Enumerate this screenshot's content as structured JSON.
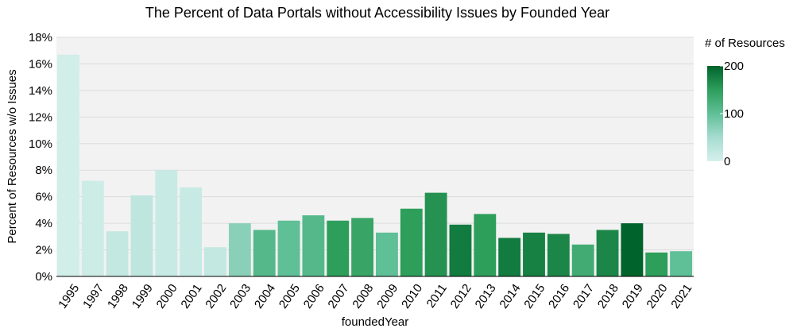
{
  "chart_data": {
    "type": "bar",
    "title": "The Percent of Data Portals without Accessibility Issues by Founded Year",
    "xlabel": "foundedYear",
    "ylabel": "Percent of Resources w/o Issues",
    "ylim": [
      0,
      18
    ],
    "yticks": [
      0,
      2,
      4,
      6,
      8,
      10,
      12,
      14,
      16,
      18
    ],
    "ytick_suffix": "%",
    "grid": true,
    "legend": {
      "title": "# of Resources",
      "placement": "right",
      "ticks": [
        "200",
        "100",
        "0"
      ],
      "range": [
        0,
        200
      ],
      "colors": [
        "#d6f0ec",
        "#a6dcd0",
        "#5fbf97",
        "#2e9e5b",
        "#00632c"
      ]
    },
    "categories": [
      "1995",
      "1997",
      "1998",
      "1999",
      "2000",
      "2001",
      "2002",
      "2003",
      "2004",
      "2005",
      "2006",
      "2007",
      "2008",
      "2009",
      "2010",
      "2011",
      "2012",
      "2013",
      "2014",
      "2015",
      "2016",
      "2017",
      "2018",
      "2019",
      "2020",
      "2021"
    ],
    "values": [
      16.7,
      7.2,
      3.4,
      6.1,
      8.0,
      6.7,
      2.2,
      4.0,
      3.5,
      4.2,
      4.6,
      4.2,
      4.4,
      3.3,
      5.1,
      6.3,
      3.9,
      4.7,
      2.9,
      3.3,
      3.2,
      2.4,
      3.5,
      4.0,
      1.8,
      1.9
    ],
    "resource_counts": [
      5,
      10,
      20,
      25,
      15,
      15,
      20,
      70,
      110,
      100,
      110,
      150,
      140,
      100,
      150,
      160,
      180,
      150,
      180,
      175,
      170,
      130,
      170,
      210,
      150,
      100
    ]
  }
}
